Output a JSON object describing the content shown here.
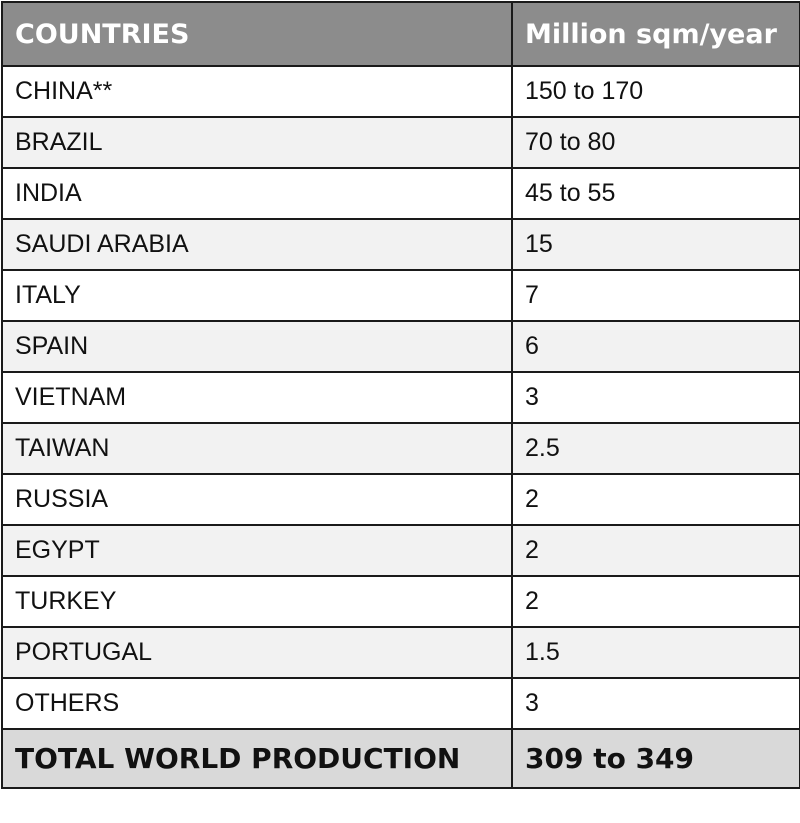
{
  "table": {
    "headers": [
      "COUNTRIES",
      "Million sqm/year"
    ],
    "rows": [
      [
        "CHINA**",
        "150 to 170"
      ],
      [
        "BRAZIL",
        "70 to 80"
      ],
      [
        "INDIA",
        "45 to 55"
      ],
      [
        "SAUDI ARABIA",
        "15"
      ],
      [
        "ITALY",
        "7"
      ],
      [
        "SPAIN",
        "6"
      ],
      [
        "VIETNAM",
        "3"
      ],
      [
        "TAIWAN",
        "2.5"
      ],
      [
        "RUSSIA",
        "2"
      ],
      [
        "EGYPT",
        "2"
      ],
      [
        "TURKEY",
        "2"
      ],
      [
        "PORTUGAL",
        "1.5"
      ],
      [
        "OTHERS",
        "3"
      ]
    ],
    "total": [
      "TOTAL WORLD PRODUCTION",
      "309 to 349"
    ]
  },
  "colors": {
    "header_bg": "#8c8c8c",
    "header_text": "#ffffff",
    "row_alt_bg": "#f2f2f2",
    "total_bg": "#d9d9d9",
    "border": "#1a1a1a"
  }
}
